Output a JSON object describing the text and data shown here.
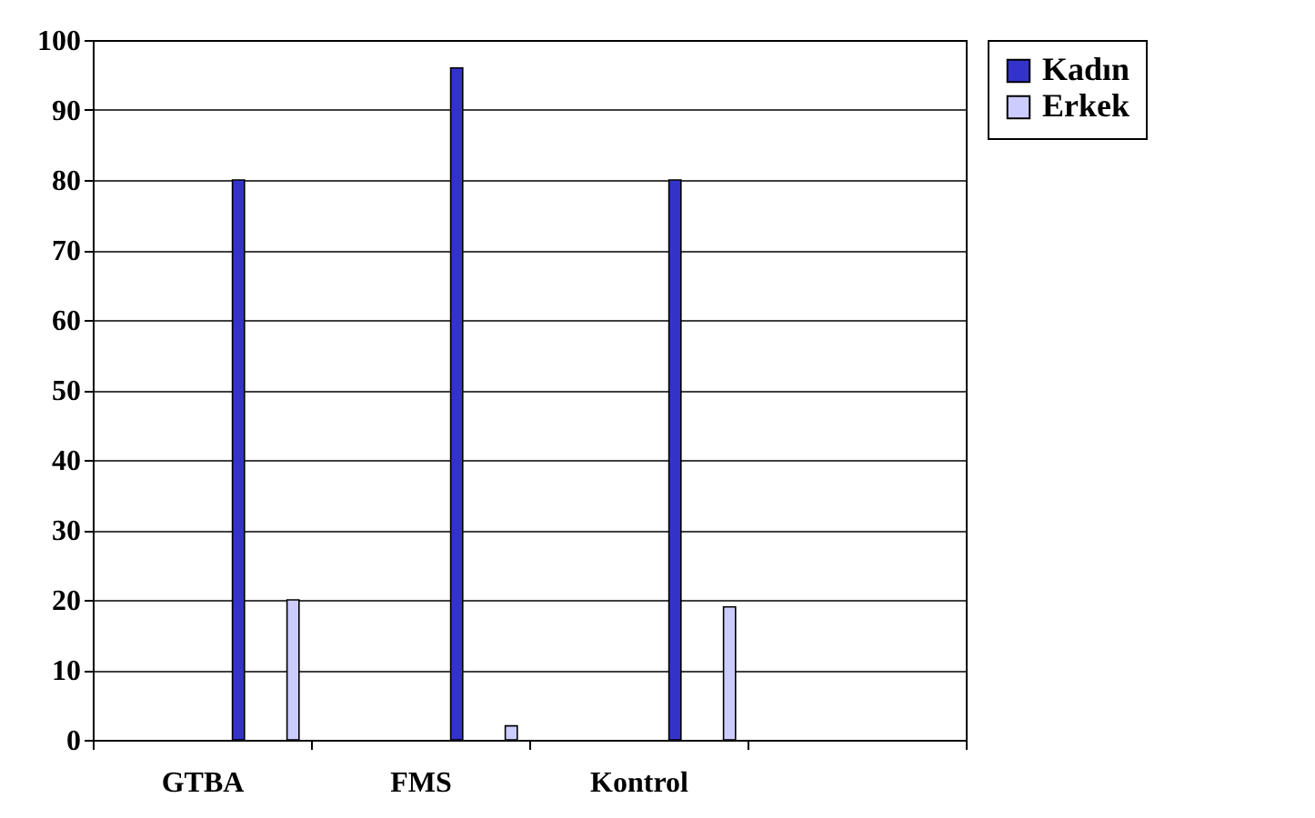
{
  "chart_data": {
    "type": "bar",
    "categories": [
      "GTBA",
      "FMS",
      "Kontrol",
      null
    ],
    "series": [
      {
        "name": "Kadın",
        "color": "#3333cc",
        "values": [
          80,
          96,
          80,
          null
        ]
      },
      {
        "name": "Erkek",
        "color": "#ccccff",
        "values": [
          20,
          2,
          19,
          null
        ]
      }
    ],
    "ylim": [
      0,
      100
    ],
    "yticks": [
      0,
      10,
      20,
      30,
      40,
      50,
      60,
      70,
      80,
      90,
      100
    ],
    "grid": "y",
    "legend": "right"
  }
}
